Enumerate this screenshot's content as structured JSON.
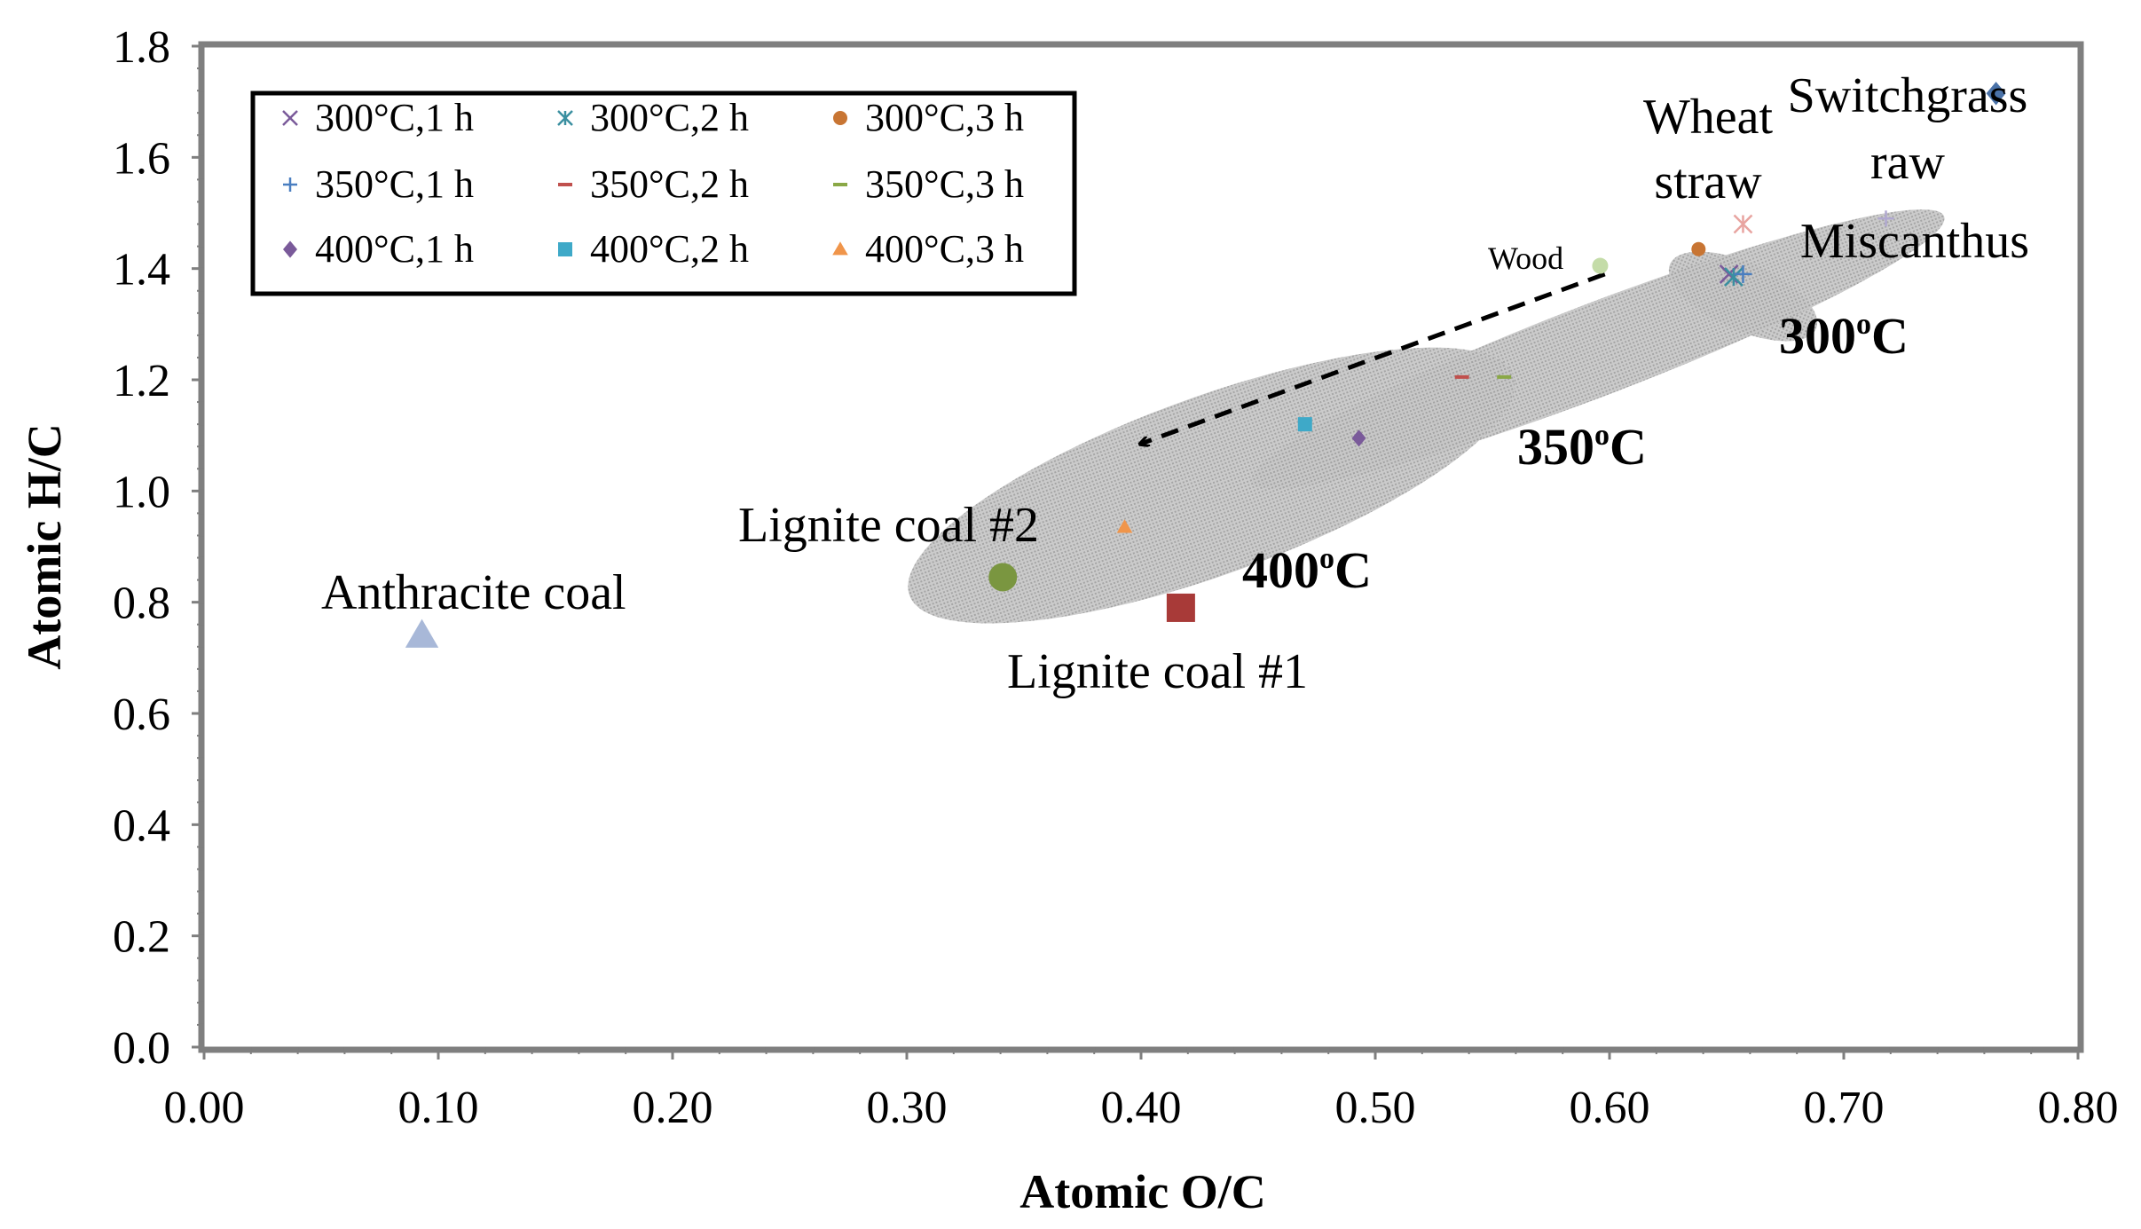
{
  "chart_data": {
    "type": "scatter",
    "xlabel": "Atomic O/C",
    "ylabel": "Atomic H/C",
    "xlim": [
      0,
      0.8
    ],
    "ylim": [
      0,
      1.8
    ],
    "x_ticks": [
      0,
      0.1,
      0.2,
      0.3,
      0.4,
      0.5,
      0.6,
      0.7,
      0.8
    ],
    "x_tick_labels": [
      "0.00",
      "0.10",
      "0.20",
      "0.30",
      "0.40",
      "0.50",
      "0.60",
      "0.70",
      "0.80"
    ],
    "y_ticks": [
      0,
      0.2,
      0.4,
      0.6,
      0.8,
      1.0,
      1.2,
      1.4,
      1.6,
      1.8
    ],
    "y_tick_labels": [
      "0.0",
      "0.2",
      "0.4",
      "0.6",
      "0.8",
      "1.0",
      "1.2",
      "1.4",
      "1.6",
      "1.8"
    ],
    "grid": false,
    "legend_position": "top-left",
    "series": [
      {
        "name": "300°C,1 h",
        "marker": "x",
        "color": "#7a5a9a",
        "points": [
          [
            0.651,
            1.39
          ]
        ]
      },
      {
        "name": "300°C,2 h",
        "marker": "star",
        "color": "#3a8fa0",
        "points": [
          [
            0.653,
            1.385
          ]
        ]
      },
      {
        "name": "300°C,3 h",
        "marker": "circle",
        "color": "#c87533",
        "points": [
          [
            0.638,
            1.435
          ]
        ]
      },
      {
        "name": "350°C,1 h",
        "marker": "plus",
        "color": "#4a7ec0",
        "points": [
          [
            0.657,
            1.39
          ]
        ]
      },
      {
        "name": "350°C,2 h",
        "marker": "dash",
        "color": "#c0504d",
        "points": [
          [
            0.537,
            1.205
          ]
        ]
      },
      {
        "name": "350°C,3 h",
        "marker": "dash",
        "color": "#8aa846",
        "points": [
          [
            0.555,
            1.205
          ]
        ]
      },
      {
        "name": "400°C,1 h",
        "marker": "diamond",
        "color": "#7a5a9a",
        "points": [
          [
            0.493,
            1.095
          ]
        ]
      },
      {
        "name": "400°C,2 h",
        "marker": "square",
        "color": "#3ea9c8",
        "points": [
          [
            0.47,
            1.12
          ]
        ]
      },
      {
        "name": "400°C,3 h",
        "marker": "triangle",
        "color": "#f0954a",
        "points": [
          [
            0.393,
            0.935
          ]
        ]
      }
    ],
    "reference_points": [
      {
        "name": "Wood",
        "marker": "circle",
        "color": "#c4dca8",
        "x": 0.596,
        "y": 1.405
      },
      {
        "name": "Wheat straw",
        "marker": "star",
        "color": "#e8a4a0",
        "x": 0.657,
        "y": 1.48
      },
      {
        "name": "Miscanthus",
        "marker": "plus",
        "color": "#b0a8d0",
        "x": 0.718,
        "y": 1.49
      },
      {
        "name": "Switchgrass raw",
        "marker": "diamond",
        "color": "#4a72a8",
        "x": 0.765,
        "y": 1.715
      },
      {
        "name": "Anthracite coal",
        "marker": "triangle",
        "color": "#a8b8d8",
        "x": 0.093,
        "y": 0.74
      },
      {
        "name": "Lignite coal #2",
        "marker": "circle",
        "color": "#7a9640",
        "x": 0.341,
        "y": 0.845
      },
      {
        "name": "Lignite coal #1",
        "marker": "square",
        "color": "#a83a38",
        "x": 0.417,
        "y": 0.79
      }
    ],
    "annotations": {
      "wood": "Wood",
      "wheat_line1": "Wheat",
      "wheat_line2": "straw",
      "switch_line1": "Switchgrass",
      "switch_line2": "raw",
      "miscanthus": "Miscanthus",
      "anthracite": "Anthracite coal",
      "lignite2": "Lignite coal #2",
      "lignite1": "Lignite coal #1",
      "t300": "300",
      "t350": "350",
      "t400": "400",
      "deg_sup": "o",
      "deg_c": "C"
    },
    "regions": [
      {
        "name": "300°C region",
        "center": [
          0.657,
          1.35
        ],
        "label": "300°C"
      },
      {
        "name": "350°C region",
        "center": [
          0.595,
          1.255
        ],
        "label": "350°C"
      },
      {
        "name": "400°C region",
        "center": [
          0.43,
          1.01
        ],
        "label": "400°C"
      }
    ],
    "arrow": {
      "from": [
        0.598,
        1.39
      ],
      "to": [
        0.4,
        1.085
      ],
      "style": "dashed"
    }
  }
}
